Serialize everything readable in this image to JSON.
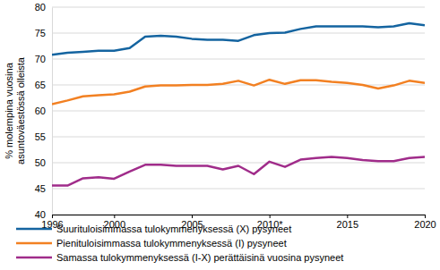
{
  "chart_data": {
    "type": "line",
    "y_label": "% molempina vuosina\nasuntoväestössä olleista",
    "x": [
      1996,
      1997,
      1998,
      1999,
      2000,
      2001,
      2002,
      2003,
      2004,
      2005,
      2006,
      2007,
      2008,
      2009,
      2010,
      2011,
      2012,
      2013,
      2014,
      2015,
      2016,
      2017,
      2018,
      2019,
      2020
    ],
    "series": [
      {
        "name": "Suurituloisimmassa tulokymmenyksessä (X) pysyneet",
        "color": "#1464a0",
        "values": [
          70.8,
          71.2,
          71.4,
          71.6,
          71.6,
          72.1,
          74.3,
          74.5,
          74.3,
          73.9,
          73.7,
          73.7,
          73.5,
          74.6,
          75.0,
          75.1,
          75.8,
          76.3,
          76.3,
          76.3,
          76.3,
          76.1,
          76.3,
          76.9,
          76.5
        ]
      },
      {
        "name": "Pienituloisimmassa tulokymmenyksessä (I) pysyneet",
        "color": "#f28022",
        "values": [
          61.3,
          62.0,
          62.8,
          63.0,
          63.2,
          63.7,
          64.7,
          64.9,
          64.9,
          65.0,
          65.0,
          65.2,
          65.8,
          64.9,
          66.0,
          65.2,
          65.9,
          65.9,
          65.6,
          65.4,
          65.0,
          64.3,
          64.9,
          65.8,
          65.4
        ]
      },
      {
        "name": "Samassa tulokymmenyksessä (I-X) perättäisinä vuosina pysyneet",
        "color": "#a02c8a",
        "values": [
          45.6,
          45.6,
          47.0,
          47.2,
          46.9,
          48.3,
          49.6,
          49.6,
          49.4,
          49.4,
          49.4,
          48.7,
          49.4,
          47.8,
          50.2,
          49.2,
          50.6,
          50.9,
          51.1,
          50.9,
          50.5,
          50.3,
          50.3,
          50.9,
          51.1
        ]
      }
    ],
    "xlim": [
      1996,
      2020
    ],
    "xticks": [
      1996,
      2000,
      2005,
      {
        "value": 2010,
        "label": "2010*"
      },
      2015,
      2020
    ],
    "ylim": [
      40,
      80
    ],
    "yticks": [
      40,
      45,
      50,
      55,
      60,
      65,
      70,
      75,
      80
    ],
    "grid": true,
    "legend": "bottom"
  }
}
